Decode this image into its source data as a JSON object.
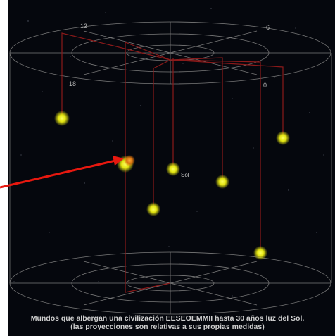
{
  "ring_labels": {
    "hour_12": "12",
    "hour_6": "6",
    "hour_18": "18",
    "hour_0": "0"
  },
  "sun_label": "Sol",
  "caption": {
    "line1": "Mundos que albergan una civilización EESEOEMMII hasta 30 años luz del Sol.",
    "line2": "(las proyecciones son relativas a sus propias medidas)"
  },
  "colors": {
    "space": "#05070d",
    "grid": "#7a7a7a",
    "stem": "#8b1a1a",
    "star": "#e8ea12",
    "highlight": "#e07a10",
    "arrow": "#e8180f"
  },
  "stars": [
    {
      "name": "star-1"
    },
    {
      "name": "star-2-highlighted"
    },
    {
      "name": "star-3-sun"
    },
    {
      "name": "star-4"
    },
    {
      "name": "star-5"
    },
    {
      "name": "star-6"
    },
    {
      "name": "star-7"
    }
  ]
}
